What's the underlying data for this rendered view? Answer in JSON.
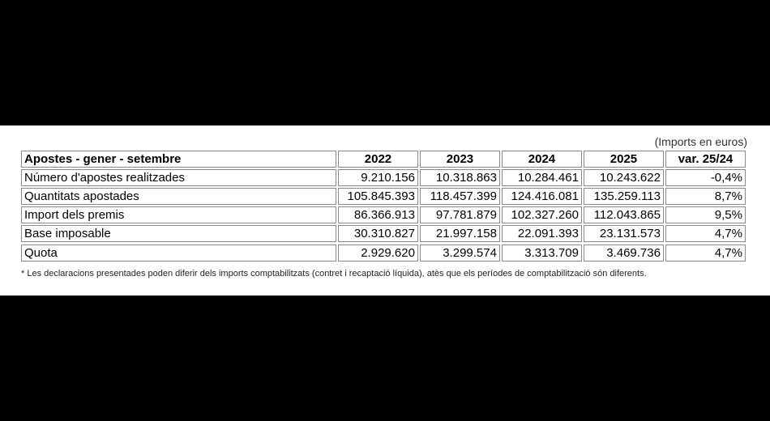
{
  "units": "(Imports en euros)",
  "table": {
    "header": {
      "label": "Apostes - gener - setembre",
      "columns": [
        "2022",
        "2023",
        "2024",
        "2025",
        "var. 25/24"
      ]
    },
    "rows": [
      {
        "label": "Número d'apostes realitzades",
        "values": [
          "9.210.156",
          "10.318.863",
          "10.284.461",
          "10.243.622",
          "-0,4%"
        ]
      },
      {
        "label": "Quantitats apostades",
        "values": [
          "105.845.393",
          "118.457.399",
          "124.416.081",
          "135.259.113",
          "8,7%"
        ]
      },
      {
        "label": "Import dels premis",
        "values": [
          "86.366.913",
          "97.781.879",
          "102.327.260",
          "112.043.865",
          "9,5%"
        ]
      },
      {
        "label": "Base imposable",
        "values": [
          "30.310.827",
          "21.997.158",
          "22.091.393",
          "23.131.573",
          "4,7%"
        ]
      }
    ],
    "quota": {
      "label": "Quota",
      "values": [
        "2.929.620",
        "3.299.574",
        "3.313.709",
        "3.469.736",
        "4,7%"
      ]
    }
  },
  "footnote": "* Les declaracions presentades poden diferir dels imports comptabilitzats (contret i recaptació líquida), atès que els períodes de comptabilització són diferents."
}
